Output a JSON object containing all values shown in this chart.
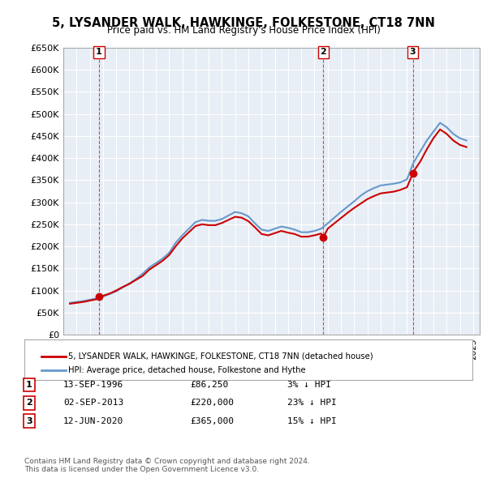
{
  "title": "5, LYSANDER WALK, HAWKINGE, FOLKESTONE, CT18 7NN",
  "subtitle": "Price paid vs. HM Land Registry's House Price Index (HPI)",
  "ylabel": "",
  "ylim": [
    0,
    650000
  ],
  "yticks": [
    0,
    50000,
    100000,
    150000,
    200000,
    250000,
    300000,
    350000,
    400000,
    450000,
    500000,
    550000,
    600000,
    650000
  ],
  "ytick_labels": [
    "£0",
    "£50K",
    "£100K",
    "£150K",
    "£200K",
    "£250K",
    "£300K",
    "£350K",
    "£400K",
    "£450K",
    "£500K",
    "£550K",
    "£600K",
    "£650K"
  ],
  "xlim_start": 1994.0,
  "xlim_end": 2025.5,
  "hpi_color": "#6699cc",
  "price_color": "#cc0000",
  "transaction_color": "#cc0000",
  "background_color": "#ffffff",
  "grid_color": "#bbccdd",
  "legend_label_price": "5, LYSANDER WALK, HAWKINGE, FOLKESTONE, CT18 7NN (detached house)",
  "legend_label_hpi": "HPI: Average price, detached house, Folkestone and Hythe",
  "transactions": [
    {
      "num": 1,
      "date": "13-SEP-1996",
      "price": 86250,
      "hpi_diff": "3% ↓ HPI",
      "year": 1996.7
    },
    {
      "num": 2,
      "date": "02-SEP-2013",
      "price": 220000,
      "hpi_diff": "23% ↓ HPI",
      "year": 2013.67
    },
    {
      "num": 3,
      "date": "12-JUN-2020",
      "price": 365000,
      "hpi_diff": "15% ↓ HPI",
      "year": 2020.44
    }
  ],
  "footnote": "Contains HM Land Registry data © Crown copyright and database right 2024.\nThis data is licensed under the Open Government Licence v3.0.",
  "hpi_data_x": [
    1994.5,
    1995.0,
    1995.5,
    1996.0,
    1996.5,
    1997.0,
    1997.5,
    1998.0,
    1998.5,
    1999.0,
    1999.5,
    2000.0,
    2000.5,
    2001.0,
    2001.5,
    2002.0,
    2002.5,
    2003.0,
    2003.5,
    2004.0,
    2004.5,
    2005.0,
    2005.5,
    2006.0,
    2006.5,
    2007.0,
    2007.5,
    2008.0,
    2008.5,
    2009.0,
    2009.5,
    2010.0,
    2010.5,
    2011.0,
    2011.5,
    2012.0,
    2012.5,
    2013.0,
    2013.5,
    2014.0,
    2014.5,
    2015.0,
    2015.5,
    2016.0,
    2016.5,
    2017.0,
    2017.5,
    2018.0,
    2018.5,
    2019.0,
    2019.5,
    2020.0,
    2020.5,
    2021.0,
    2021.5,
    2022.0,
    2022.5,
    2023.0,
    2023.5,
    2024.0,
    2024.5
  ],
  "hpi_data_y": [
    72000,
    74000,
    76000,
    79000,
    82000,
    86000,
    92000,
    98000,
    107000,
    116000,
    126000,
    138000,
    152000,
    162000,
    172000,
    185000,
    208000,
    225000,
    240000,
    255000,
    260000,
    258000,
    258000,
    262000,
    270000,
    278000,
    275000,
    268000,
    252000,
    238000,
    235000,
    240000,
    245000,
    242000,
    238000,
    232000,
    232000,
    235000,
    240000,
    252000,
    265000,
    278000,
    290000,
    302000,
    315000,
    325000,
    332000,
    338000,
    340000,
    342000,
    345000,
    352000,
    390000,
    415000,
    440000,
    460000,
    480000,
    470000,
    455000,
    445000,
    440000
  ],
  "price_data_x": [
    1994.5,
    1995.0,
    1995.5,
    1996.0,
    1996.5,
    1996.7,
    1997.0,
    1997.5,
    1998.0,
    1998.5,
    1999.0,
    1999.5,
    2000.0,
    2000.5,
    2001.0,
    2001.5,
    2002.0,
    2002.5,
    2003.0,
    2003.5,
    2004.0,
    2004.5,
    2005.0,
    2005.5,
    2006.0,
    2006.5,
    2007.0,
    2007.5,
    2008.0,
    2008.5,
    2009.0,
    2009.5,
    2010.0,
    2010.5,
    2011.0,
    2011.5,
    2012.0,
    2012.5,
    2013.0,
    2013.5,
    2013.67,
    2014.0,
    2014.5,
    2015.0,
    2015.5,
    2016.0,
    2016.5,
    2017.0,
    2017.5,
    2018.0,
    2018.5,
    2019.0,
    2019.5,
    2020.0,
    2020.44,
    2020.5,
    2021.0,
    2021.5,
    2022.0,
    2022.5,
    2023.0,
    2023.5,
    2024.0,
    2024.5
  ],
  "price_data_y": [
    70000,
    72000,
    74000,
    77000,
    80000,
    86250,
    88000,
    93000,
    100000,
    108000,
    115000,
    124000,
    133000,
    147000,
    157000,
    167000,
    180000,
    200000,
    218000,
    232000,
    246000,
    250000,
    248000,
    248000,
    253000,
    260000,
    267000,
    265000,
    257000,
    243000,
    228000,
    225000,
    230000,
    235000,
    231000,
    228000,
    222000,
    222000,
    225000,
    229000,
    220000,
    240000,
    252000,
    264000,
    276000,
    287000,
    297000,
    307000,
    314000,
    320000,
    322000,
    324000,
    328000,
    334000,
    365000,
    370000,
    392000,
    420000,
    445000,
    465000,
    455000,
    440000,
    430000,
    425000
  ]
}
